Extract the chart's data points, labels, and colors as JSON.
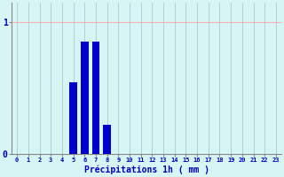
{
  "hours": [
    0,
    1,
    2,
    3,
    4,
    5,
    6,
    7,
    8,
    9,
    10,
    11,
    12,
    13,
    14,
    15,
    16,
    17,
    18,
    19,
    20,
    21,
    22,
    23
  ],
  "values": [
    0,
    0,
    0,
    0,
    0,
    0.54,
    0.85,
    0.85,
    0.22,
    0,
    0,
    0,
    0,
    0,
    0,
    0,
    0,
    0,
    0,
    0,
    0,
    0,
    0,
    0
  ],
  "bar_color": "#0000cc",
  "background_color": "#d8f5f5",
  "grid_color_h": "#ffaaaa",
  "grid_color_v": "#aacccc",
  "xlabel": "Précipitations 1h ( mm )",
  "xlabel_color": "#0000bb",
  "tick_label_color": "#0000bb",
  "ytick_labels": [
    "0",
    "1"
  ],
  "ytick_positions": [
    0,
    1
  ],
  "ylim": [
    0,
    1.15
  ],
  "xlim": [
    -0.5,
    23.5
  ],
  "bar_width": 0.7
}
